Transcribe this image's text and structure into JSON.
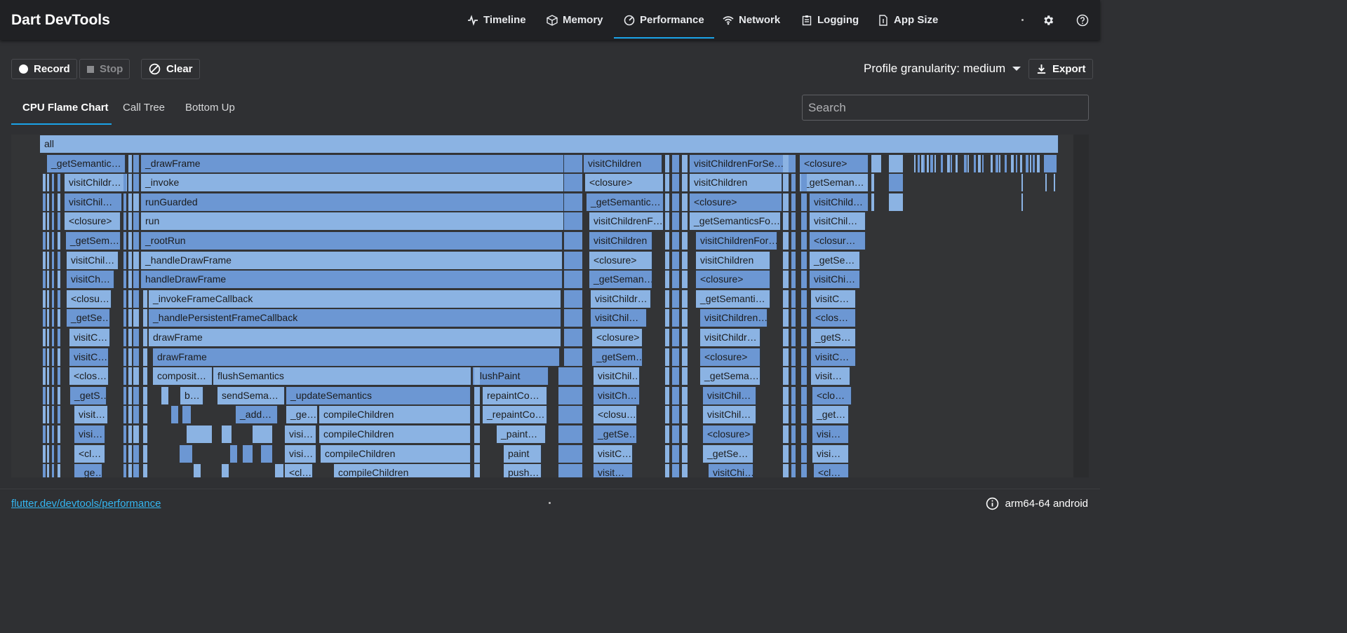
{
  "app": {
    "title": "Dart DevTools"
  },
  "nav": {
    "tabs": [
      {
        "label": "Timeline",
        "icon": "timeline-icon"
      },
      {
        "label": "Memory",
        "icon": "memory-icon"
      },
      {
        "label": "Performance",
        "icon": "performance-icon",
        "active": true
      },
      {
        "label": "Network",
        "icon": "network-icon"
      },
      {
        "label": "Logging",
        "icon": "logging-icon"
      },
      {
        "label": "App Size",
        "icon": "app-size-icon"
      }
    ]
  },
  "toolbar": {
    "record_label": "Record",
    "stop_label": "Stop",
    "clear_label": "Clear",
    "granularity_label": "Profile granularity: medium",
    "export_label": "Export"
  },
  "subtabs": [
    {
      "label": "CPU Flame Chart",
      "active": true
    },
    {
      "label": "Call Tree"
    },
    {
      "label": "Bottom Up"
    }
  ],
  "search": {
    "placeholder": "Search"
  },
  "flame": {
    "root": "all",
    "main": [
      "_drawFrame",
      "_invoke",
      "runGuarded",
      "run",
      "_rootRun",
      "_handleDrawFrame",
      "handleDrawFrame",
      "_invokeFrameCallback",
      "_handlePersistentFrameCallback",
      "drawFrame",
      "drawFrame"
    ],
    "row11": [
      "composit…",
      "flushSemantics",
      "flushPaint"
    ],
    "row12": [
      "b…",
      "sendSema…",
      "_updateSemantics",
      "repaintCo…"
    ],
    "row13": [
      "_add…",
      "_ge…",
      "compileChildren",
      "_repaintCo…"
    ],
    "row14": [
      "visi…",
      "compileChildren",
      "_paint…"
    ],
    "row15": [
      "visi…",
      "compileChildren",
      "paint"
    ],
    "row16": [
      "<cl…",
      "compileChildren",
      "push…"
    ],
    "left": [
      "_getSemantic…",
      "visitChildr…",
      "visitChil…",
      "<closure>",
      "_getSem…",
      "visitChil…",
      "visitCh…",
      "<closu…",
      "_getSe…",
      "visitC…",
      "visitC…",
      "<clos…",
      "_getS…",
      "visit…",
      "visi…",
      "<cl…",
      "_ge…"
    ],
    "col2": [
      "visitChildren",
      "<closure>",
      "_getSemantic…",
      "visitChildrenF…",
      "visitChildren",
      "<closure>",
      "_getSeman…",
      "visitChildr…",
      "visitChil…",
      "<closure>",
      "_getSem…",
      "visitChil…",
      "visitCh…",
      "<closu…",
      "_getSe…",
      "visitC…",
      "visit…"
    ],
    "col3": [
      "visitChildrenForSe…",
      "visitChildren",
      "<closure>",
      "_getSemanticsFo…",
      "visitChildrenFor…",
      "visitChildren",
      "<closure>",
      "_getSemanti…",
      "visitChildren…",
      "visitChildr…",
      "<closure>",
      "_getSema…",
      "visitChil…",
      "visitChil…",
      "<closure>",
      "_getSe…",
      "visitChi…"
    ],
    "col4": [
      "<closure>",
      "_getSeman…",
      "visitChild…",
      "visitChil…",
      "<closur…",
      "_getSe…",
      "visitChi…",
      "visitC…",
      "<clos…",
      "_getS…",
      "visitC…",
      "visit…",
      "<clo…",
      "_get…",
      "visi…",
      "visi…",
      "<cl…"
    ]
  },
  "status": {
    "link": "flutter.dev/devtools/performance",
    "device": "arm64-64 android"
  },
  "colors": {
    "accent": "#1aa3e8",
    "flame_light": "#8bb3e3",
    "flame_dark": "#6c97d3",
    "link": "#34b6f1"
  }
}
